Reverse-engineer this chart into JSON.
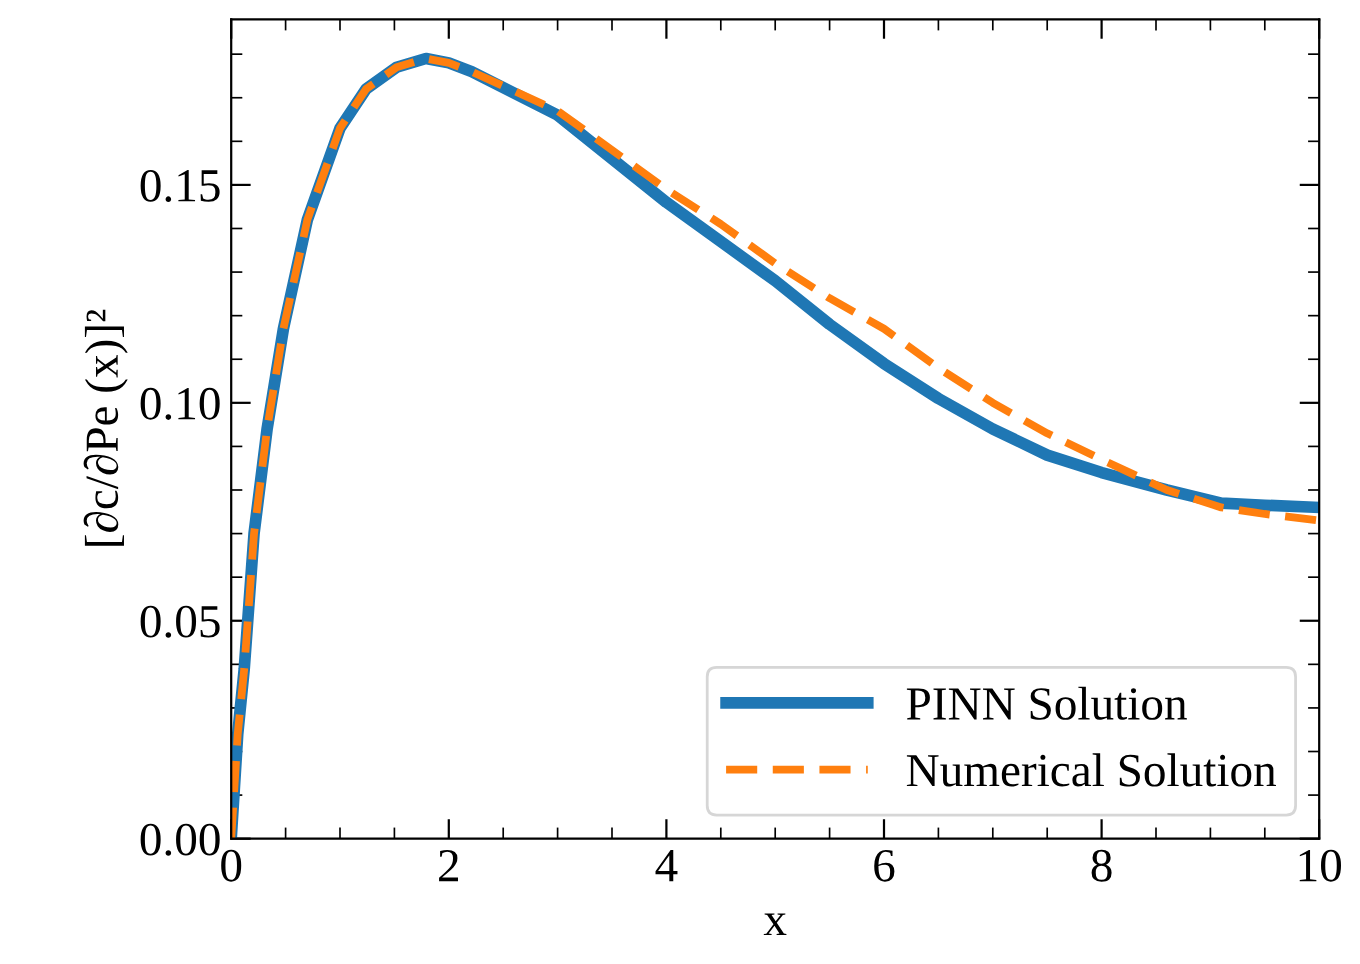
{
  "chart_data": {
    "type": "line",
    "xlabel": "x",
    "ylabel": "[∂c/∂Pe (x)]²",
    "xlim": [
      0,
      10
    ],
    "ylim": [
      0,
      0.188
    ],
    "xticks": [
      0,
      2,
      4,
      6,
      8,
      10
    ],
    "yticks": [
      {
        "value": 0,
        "label": "0.00"
      },
      {
        "value": 0.05,
        "label": "0.05"
      },
      {
        "value": 0.1,
        "label": "0.10"
      },
      {
        "value": 0.15,
        "label": "0.15"
      }
    ],
    "grid": false,
    "legend": "bottom right",
    "marker": "none",
    "series": [
      {
        "name": "PINN Solution",
        "color": "#1f77b4",
        "line_style": "solid",
        "x": [
          0,
          0.06,
          0.12,
          0.21,
          0.33,
          0.48,
          0.7,
          1.0,
          1.24,
          1.52,
          1.79,
          2.0,
          2.21,
          3.0,
          4.0,
          4.5,
          5.0,
          5.5,
          6.0,
          6.5,
          7.0,
          7.5,
          8.0,
          8.6,
          9.1,
          9.5,
          10
        ],
        "values": [
          0,
          0.024,
          0.039,
          0.07,
          0.094,
          0.117,
          0.142,
          0.163,
          0.172,
          0.177,
          0.179,
          0.178,
          0.176,
          0.166,
          0.146,
          0.137,
          0.128,
          0.118,
          0.109,
          0.101,
          0.094,
          0.088,
          0.084,
          0.08,
          0.077,
          0.0765,
          0.076
        ]
      },
      {
        "name": "Numerical Solution",
        "color": "#ff7f0e",
        "line_style": "dashed",
        "x": [
          0,
          0.06,
          0.12,
          0.21,
          0.33,
          0.48,
          0.7,
          1.0,
          1.24,
          1.52,
          1.79,
          2.0,
          2.21,
          3.0,
          4.0,
          4.5,
          5.0,
          5.5,
          6.0,
          6.5,
          7.0,
          7.5,
          8.0,
          8.6,
          9.1,
          9.5,
          10
        ],
        "values": [
          0,
          0.024,
          0.039,
          0.07,
          0.094,
          0.117,
          0.142,
          0.163,
          0.172,
          0.177,
          0.179,
          0.178,
          0.176,
          0.167,
          0.149,
          0.141,
          0.132,
          0.124,
          0.117,
          0.108,
          0.1,
          0.093,
          0.087,
          0.08,
          0.076,
          0.0745,
          0.073
        ]
      }
    ]
  }
}
